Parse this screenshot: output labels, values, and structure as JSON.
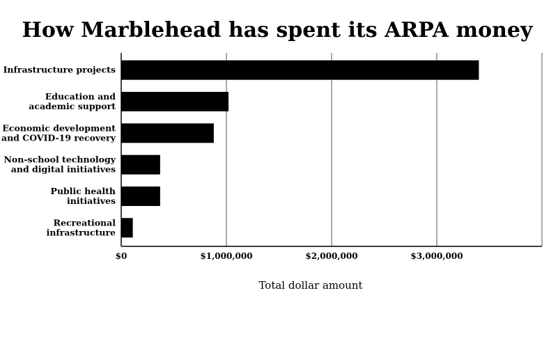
{
  "chart_data": {
    "type": "bar",
    "orientation": "horizontal",
    "title": "How Marblehead has spent its ARPA money",
    "xlabel": "Total dollar amount",
    "ylabel": "",
    "categories": [
      [
        "Infrastructure projects"
      ],
      [
        "Education and",
        "academic support"
      ],
      [
        "Economic development",
        "and COVID-19 recovery"
      ],
      [
        "Non-school technology",
        "and digital initiatives"
      ],
      [
        "Public health",
        "initiatives"
      ],
      [
        "Recreational",
        "infrastructure"
      ]
    ],
    "values": [
      3400000,
      1020000,
      880000,
      370000,
      370000,
      110000
    ],
    "xlim": [
      0,
      4000000
    ],
    "xticks": [
      0,
      1000000,
      2000000,
      3000000
    ],
    "xtick_labels": [
      "$0",
      "$1,000,000",
      "$2,000,000",
      "$3,000,000"
    ],
    "grid": "vertical",
    "bar_color": "#000000",
    "legend": "none"
  }
}
